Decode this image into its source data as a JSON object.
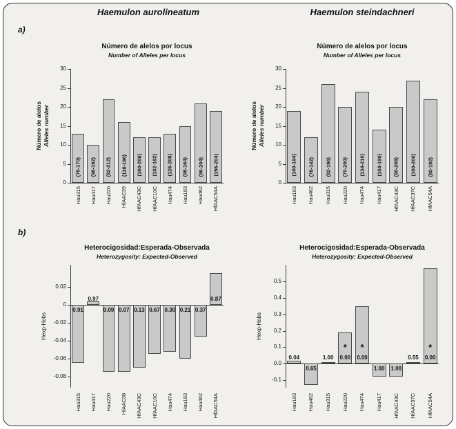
{
  "figure": {
    "headers": {
      "left": "Haemulon aurolineatum",
      "right": "Haemulon steindachneri"
    },
    "panel_labels": {
      "a": "a)",
      "b": "b)"
    }
  },
  "colors": {
    "bar_fill": "#c9c9c9",
    "bar_border": "#4a4a4a",
    "axis": "#333333",
    "frame_background": "#f1f0ed",
    "frame_border": "#2a2a2a",
    "text": "#141414"
  },
  "chart_data": [
    {
      "id": "alleles-aurolineatum",
      "type": "bar",
      "panel": "a",
      "species": "Haemulon aurolineatum",
      "title": "Número de alelos por locus",
      "subtitle": "Number of Alleles per locus",
      "ylabel": [
        "Número de alelos",
        "Alleles number"
      ],
      "ylim": [
        0,
        30
      ],
      "yticks": [
        0,
        5,
        10,
        15,
        20,
        25,
        30
      ],
      "ytick_labels": [
        "0",
        "5",
        "10",
        "15",
        "20",
        "25",
        "30"
      ],
      "categories": [
        "Hau315",
        "Hau417",
        "Hau220",
        "HfAAC39",
        "HfAAC43C",
        "HfAAC10C",
        "Hau474",
        "Hau183",
        "Hau462",
        "HfAAC54A"
      ],
      "values": [
        13,
        10,
        22,
        16,
        12,
        12,
        13,
        15,
        21,
        19
      ],
      "bar_range_labels": [
        "(76-170)",
        "(96-192)",
        "(82-212)",
        "(118-196)",
        "(160-206)",
        "(102-192)",
        "(126-208)",
        "(98-164)",
        "(96-204)",
        "(156-204)"
      ]
    },
    {
      "id": "alleles-steindachneri",
      "type": "bar",
      "panel": "a",
      "species": "Haemulon steindachneri",
      "title": "Número de alelos por locus",
      "subtitle": "Number of Alleles per locus",
      "ylabel": [
        "Número de alelos",
        "Alleles number"
      ],
      "ylim": [
        0,
        30
      ],
      "yticks": [
        0,
        5,
        10,
        15,
        20,
        25,
        30
      ],
      "ytick_labels": [
        "0",
        "5",
        "10",
        "15",
        "20",
        "25",
        "30"
      ],
      "categories": [
        "Hau183",
        "Hau462",
        "Hau315",
        "Hau220",
        "Hau474",
        "Hau417",
        "HfAAC43C",
        "HfAAC37C",
        "HfAAC54A"
      ],
      "values": [
        19,
        12,
        26,
        20,
        24,
        14,
        20,
        27,
        22
      ],
      "bar_range_labels": [
        "(100-194)",
        "(78-142)",
        "(82-196)",
        "(70-200)",
        "(134-210)",
        "(104-190)",
        "(90-208)",
        "(100-200)",
        "(80-192)"
      ]
    },
    {
      "id": "het-aurolineatum",
      "type": "bar",
      "panel": "b",
      "species": "Haemulon aurolineatum",
      "title": "Heterocigosidad:Esperada-Observada",
      "subtitle": "Heterozygosity: Expected-Observed",
      "ylabel": [
        "Hexp-Hobs"
      ],
      "ylim": [
        -0.0925,
        0.045
      ],
      "yticks": [
        0.02,
        0,
        -0.02,
        -0.04,
        -0.06,
        -0.08
      ],
      "ytick_labels": [
        "0.02",
        "0",
        "-0.02",
        "-0.04",
        "-0.06",
        "-0.08"
      ],
      "categories": [
        "Hau315",
        "Hau417",
        "Hau220",
        "HfAAC38",
        "HfAAC43C",
        "HfAAC10C",
        "Hau474",
        "Hau183",
        "Hau462",
        "HfAAC54A"
      ],
      "values": [
        -0.065,
        0.004,
        -0.075,
        -0.075,
        -0.07,
        -0.055,
        -0.052,
        -0.06,
        -0.035,
        0.036
      ],
      "value_labels": [
        "0.91",
        "0.97",
        "0.09",
        "0.07",
        "0.13",
        "0.67",
        "0.30",
        "0.21",
        "0.37",
        "0.87"
      ],
      "stars": [
        false,
        false,
        false,
        false,
        false,
        false,
        false,
        false,
        false,
        false
      ]
    },
    {
      "id": "het-steindachneri",
      "type": "bar",
      "panel": "b",
      "species": "Haemulon steindachneri",
      "title": "Heterocigosidad:Esperada-Observada",
      "subtitle": "Heterozygosity: Expected-Observed",
      "ylabel": [
        "Hexp-Hobs"
      ],
      "ylim": [
        -0.145,
        0.6
      ],
      "yticks": [
        0.5,
        0.4,
        0.3,
        0.2,
        0.1,
        0.0,
        -0.1
      ],
      "ytick_labels": [
        "0.5",
        "0.4",
        "0.3",
        "0.2",
        "0.1",
        "0.0",
        "-0.1"
      ],
      "categories": [
        "Hau183",
        "Hau462",
        "Hau315",
        "Hau220",
        "Hau474",
        "Hau417",
        "HfAAC43C",
        "HfAAC37C",
        "HfAAC54A"
      ],
      "values": [
        0.02,
        -0.13,
        0.01,
        0.19,
        0.35,
        -0.08,
        -0.08,
        0.01,
        0.58
      ],
      "value_labels": [
        "0.04",
        "0.65",
        "1.00",
        "0.00",
        "0.00",
        "1.00",
        "1.00",
        "0.55",
        "0.00"
      ],
      "stars": [
        false,
        false,
        false,
        true,
        true,
        false,
        false,
        false,
        true
      ]
    }
  ]
}
